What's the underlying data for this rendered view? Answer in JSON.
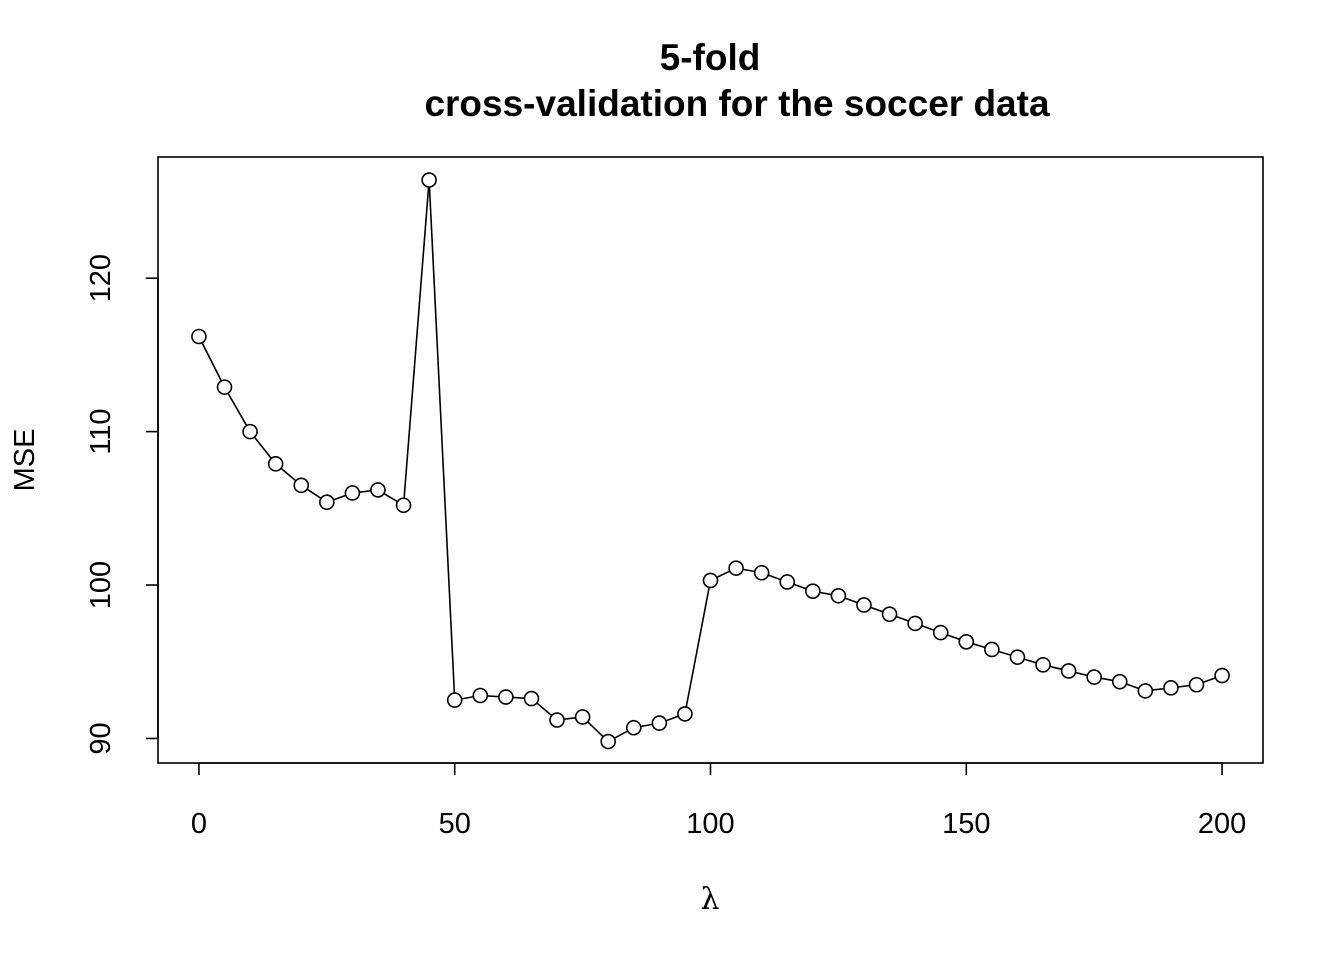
{
  "chart_data": {
    "type": "line",
    "title_line1": "5-fold",
    "title_line2": "cross-validation for the soccer data",
    "xlabel": "λ",
    "ylabel": "MSE",
    "x_ticks": [
      0,
      50,
      100,
      150,
      200
    ],
    "y_ticks": [
      90,
      100,
      110,
      120
    ],
    "x_tick_labels": [
      "0",
      "50",
      "100",
      "150",
      "200"
    ],
    "y_tick_labels": [
      "90",
      "100",
      "110",
      "120"
    ],
    "xlim": [
      -8,
      208
    ],
    "ylim": [
      88.4,
      127.9
    ],
    "markers": "open-circle",
    "line_color": "#000000",
    "grid": false,
    "series": [
      {
        "x": [
          0,
          5,
          10,
          15,
          20,
          25,
          30,
          35,
          40,
          45,
          50,
          55,
          60,
          65,
          70,
          75,
          80,
          85,
          90,
          95,
          100,
          105,
          110,
          115,
          120,
          125,
          130,
          135,
          140,
          145,
          150,
          155,
          160,
          165,
          170,
          175,
          180,
          185,
          190,
          195,
          200
        ],
        "values": [
          116.2,
          112.9,
          110.0,
          107.9,
          106.5,
          105.4,
          106.0,
          106.2,
          105.2,
          126.4,
          92.5,
          92.8,
          92.7,
          92.6,
          91.2,
          91.4,
          89.8,
          90.7,
          91.0,
          91.6,
          100.3,
          101.1,
          100.8,
          100.2,
          99.6,
          99.3,
          98.7,
          98.1,
          97.5,
          96.9,
          96.3,
          95.8,
          95.3,
          94.8,
          94.4,
          94.0,
          93.7,
          93.1,
          93.3,
          93.5,
          94.1
        ]
      }
    ]
  }
}
